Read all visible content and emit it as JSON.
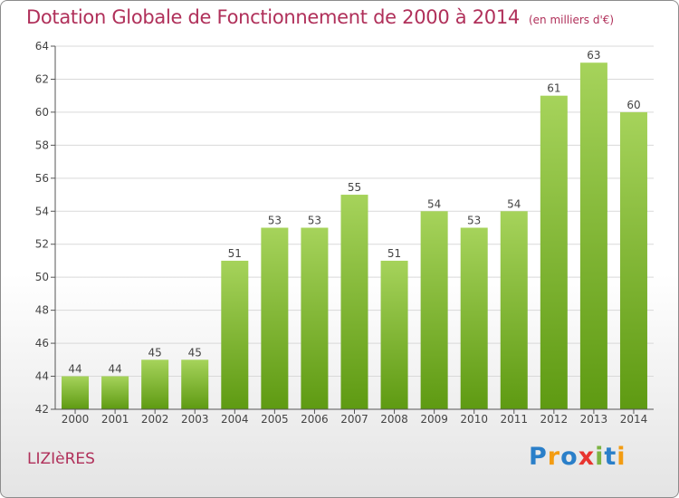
{
  "title": "Dotation Globale de Fonctionnement de 2000 à 2014",
  "unit_note": "(en milliers d'€)",
  "commune": "LIZIèRES",
  "logo": {
    "letters": [
      "P",
      "r",
      "o",
      "x",
      "i",
      "t",
      "i"
    ],
    "colors": [
      "#2a7fc9",
      "#f39c12",
      "#2a7fc9",
      "#e8342f",
      "#7cb342",
      "#2a7fc9",
      "#f39c12"
    ]
  },
  "colors": {
    "title": "#b0305a",
    "bar_top": "#a6d35b",
    "bar_bottom": "#5e9a12",
    "grid": "#d9d9d9",
    "axis": "#555555"
  },
  "chart_data": {
    "type": "bar",
    "categories": [
      "2000",
      "2001",
      "2002",
      "2003",
      "2004",
      "2005",
      "2006",
      "2007",
      "2008",
      "2009",
      "2010",
      "2011",
      "2012",
      "2013",
      "2014"
    ],
    "values": [
      44,
      44,
      45,
      45,
      51,
      53,
      53,
      55,
      51,
      54,
      53,
      54,
      61,
      63,
      60
    ],
    "title": "Dotation Globale de Fonctionnement de 2000 à 2014",
    "ylim": [
      42,
      64
    ],
    "yticks": [
      42,
      44,
      46,
      48,
      50,
      52,
      54,
      56,
      58,
      60,
      62,
      64
    ],
    "grid": true,
    "data_labels": true
  }
}
